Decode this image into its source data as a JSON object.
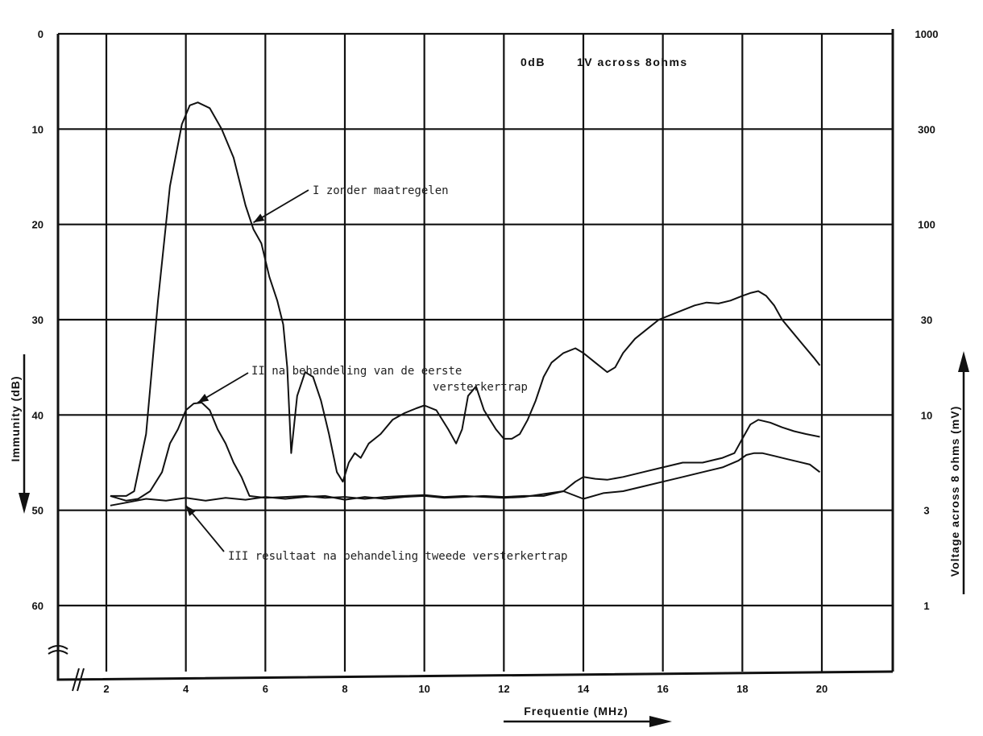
{
  "chart_data": {
    "type": "line",
    "title": "",
    "xlabel": "Frequentie (MHz)",
    "ylabel": "Immunity (dB)",
    "y2label": "Voltage across 8 ohms (mV)",
    "xlim": [
      2,
      22
    ],
    "ylim": [
      0,
      67
    ],
    "y_inverted": true,
    "grid": true,
    "x_ticks": [
      "2",
      "4",
      "6",
      "8",
      "10",
      "12",
      "14",
      "16",
      "18",
      "20"
    ],
    "y_ticks": [
      "0",
      "10",
      "20",
      "30",
      "40",
      "50",
      "60"
    ],
    "y2_ticks": [
      "1000",
      "300",
      "100",
      "30",
      "10",
      "3",
      "1"
    ],
    "y2_tick_positions_db": [
      0,
      10,
      20,
      30,
      40,
      50,
      60
    ],
    "note": {
      "left": "0dB",
      "right": "1V across 8ohms"
    },
    "annotations": [
      {
        "label": "I  zonder maatregelen",
        "lines": [
          "I  zonder maatregelen"
        ],
        "target": [
          5.7,
          19.8
        ]
      },
      {
        "label": "II  na behandeling van de eerste versterkertrap",
        "lines": [
          "II  na behandeling van de eerste",
          "versterkertrap"
        ],
        "target": [
          4.3,
          38.7
        ]
      },
      {
        "label": "III  resultaat na behandeling tweede versterkertrap",
        "lines": [
          "III  resultaat na behandeling tweede versterkertrap"
        ],
        "target": [
          4.0,
          49.5
        ]
      }
    ],
    "series": [
      {
        "x": [
          2.1,
          2.5,
          2.7,
          3.0,
          3.3,
          3.6,
          3.9,
          4.1,
          4.3,
          4.6,
          4.9,
          5.2,
          5.5,
          5.7,
          5.9,
          6.1,
          6.3,
          6.45,
          6.55,
          6.65,
          6.8,
          7.0,
          7.2,
          7.4,
          7.6,
          7.8,
          7.95,
          8.1,
          8.25,
          8.4,
          8.6,
          8.9,
          9.2,
          9.5,
          9.8,
          10.0,
          10.3,
          10.6,
          10.8,
          10.95,
          11.1,
          11.3,
          11.5,
          11.8,
          12.0,
          12.2,
          12.4,
          12.6,
          12.8,
          13.0,
          13.2,
          13.5,
          13.8,
          14.0,
          14.3,
          14.6,
          14.8,
          15.0,
          15.3,
          15.6,
          15.9,
          16.2,
          16.5,
          16.8,
          17.1,
          17.4,
          17.7,
          18.0,
          18.2,
          18.4,
          18.6,
          18.8,
          19.0,
          19.2,
          19.5,
          19.8,
          19.95
        ],
        "values": [
          48.5,
          48.5,
          48.0,
          42.0,
          28.0,
          16.0,
          9.5,
          7.5,
          7.2,
          7.8,
          10.0,
          13.0,
          18.0,
          20.5,
          22.0,
          25.5,
          28.0,
          30.5,
          35.0,
          44.0,
          38.0,
          35.5,
          36.0,
          38.5,
          42.0,
          46.0,
          47.0,
          45.0,
          44.0,
          44.5,
          43.0,
          42.0,
          40.5,
          39.8,
          39.3,
          39.0,
          39.5,
          41.5,
          43.0,
          41.5,
          38.0,
          37.0,
          39.5,
          41.5,
          42.5,
          42.5,
          42.0,
          40.5,
          38.5,
          36.0,
          34.5,
          33.5,
          33.0,
          33.5,
          34.5,
          35.5,
          35.0,
          33.5,
          32.0,
          31.0,
          30.0,
          29.5,
          29.0,
          28.5,
          28.2,
          28.3,
          28.0,
          27.5,
          27.2,
          27.0,
          27.5,
          28.5,
          30.0,
          31.0,
          32.5,
          34.0,
          34.8
        ]
      },
      {
        "x": [
          2.1,
          2.5,
          2.8,
          3.1,
          3.4,
          3.6,
          3.8,
          4.0,
          4.2,
          4.4,
          4.6,
          4.8,
          5.0,
          5.2,
          5.4,
          5.6,
          6.0,
          6.5,
          7.0,
          7.5,
          8.0,
          8.5,
          9.0,
          9.5,
          10.0,
          10.5,
          11.0,
          11.5,
          12.0,
          12.5,
          13.0,
          13.5,
          14.0,
          14.5,
          15.0,
          15.5,
          16.0,
          16.5,
          17.0,
          17.5,
          17.9,
          18.1,
          18.3,
          18.5,
          18.8,
          19.1,
          19.4,
          19.7,
          19.95
        ],
        "values": [
          48.5,
          49.0,
          48.8,
          48.0,
          46.0,
          43.0,
          41.5,
          39.5,
          38.8,
          38.7,
          39.5,
          41.5,
          43.0,
          45.0,
          46.5,
          48.5,
          48.7,
          48.6,
          48.5,
          48.7,
          48.6,
          48.8,
          48.6,
          48.5,
          48.4,
          48.6,
          48.5,
          48.6,
          48.7,
          48.6,
          48.3,
          48.0,
          48.8,
          48.2,
          48.0,
          47.5,
          47.0,
          46.5,
          46.0,
          45.5,
          44.8,
          44.2,
          44.0,
          44.0,
          44.3,
          44.6,
          44.9,
          45.2,
          46.0
        ]
      },
      {
        "x": [
          2.1,
          2.5,
          3.0,
          3.5,
          4.0,
          4.5,
          5.0,
          5.5,
          6.0,
          6.5,
          7.0,
          7.5,
          8.0,
          8.5,
          9.0,
          9.5,
          10.0,
          10.5,
          11.0,
          11.5,
          12.0,
          12.5,
          13.0,
          13.5,
          13.8,
          14.0,
          14.3,
          14.6,
          15.0,
          15.5,
          16.0,
          16.5,
          17.0,
          17.5,
          17.8,
          18.0,
          18.2,
          18.4,
          18.7,
          19.0,
          19.3,
          19.6,
          19.95
        ],
        "values": [
          49.5,
          49.2,
          48.8,
          49.0,
          48.7,
          49.0,
          48.7,
          48.9,
          48.6,
          48.8,
          48.6,
          48.5,
          48.9,
          48.6,
          48.8,
          48.6,
          48.5,
          48.7,
          48.6,
          48.5,
          48.6,
          48.5,
          48.5,
          48.0,
          47.0,
          46.5,
          46.7,
          46.8,
          46.5,
          46.0,
          45.5,
          45.0,
          45.0,
          44.5,
          44.0,
          42.5,
          41.0,
          40.5,
          40.8,
          41.3,
          41.7,
          42.0,
          42.3
        ]
      }
    ]
  }
}
